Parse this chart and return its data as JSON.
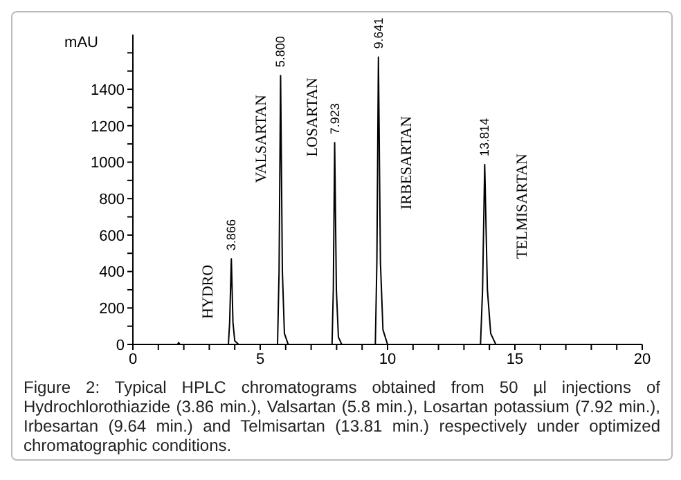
{
  "chart_data": {
    "type": "line",
    "ylabel": "mAU",
    "series": [
      {
        "color": "#000000",
        "x": [
          0,
          1.75,
          1.8,
          1.85,
          3.75,
          3.8,
          3.866,
          3.93,
          4.0,
          4.15,
          5.68,
          5.74,
          5.8,
          5.87,
          5.95,
          6.1,
          7.82,
          7.87,
          7.923,
          7.99,
          8.07,
          8.2,
          9.52,
          9.58,
          9.641,
          9.72,
          9.82,
          10.0,
          13.65,
          13.73,
          13.814,
          13.92,
          14.05,
          14.25,
          17.1
        ],
        "values": [
          0,
          0,
          10,
          0,
          0,
          120,
          470,
          120,
          20,
          0,
          0,
          400,
          1475,
          400,
          60,
          0,
          0,
          300,
          1107,
          300,
          40,
          0,
          0,
          450,
          1577,
          450,
          80,
          0,
          0,
          300,
          987,
          300,
          60,
          0,
          0
        ]
      }
    ],
    "xlim": [
      0,
      20
    ],
    "xticks": [
      0,
      {
        "value": 1,
        "label": null
      },
      {
        "value": 2,
        "label": null
      },
      {
        "value": 3,
        "label": null
      },
      {
        "value": 4,
        "label": null
      },
      5,
      {
        "value": 6,
        "label": null
      },
      {
        "value": 7,
        "label": null
      },
      {
        "value": 8,
        "label": null
      },
      {
        "value": 9,
        "label": null
      },
      10,
      {
        "value": 11,
        "label": null
      },
      {
        "value": 12,
        "label": null
      },
      {
        "value": 13,
        "label": null
      },
      {
        "value": 14,
        "label": null
      },
      15,
      {
        "value": 16,
        "label": null
      },
      {
        "value": 17,
        "label": null
      },
      {
        "value": 18,
        "label": null
      },
      {
        "value": 19,
        "label": null
      },
      20
    ],
    "ylim": [
      0,
      1700
    ],
    "yticks": [
      0,
      {
        "value": 100,
        "label": null
      },
      200,
      {
        "value": 300,
        "label": null
      },
      400,
      {
        "value": 500,
        "label": null
      },
      600,
      {
        "value": 700,
        "label": null
      },
      800,
      {
        "value": 900,
        "label": null
      },
      1000,
      {
        "value": 1100,
        "label": null
      },
      1200,
      {
        "value": 1300,
        "label": null
      },
      1400,
      {
        "value": 1500,
        "label": null
      },
      {
        "value": 1600,
        "label": null
      }
    ],
    "grid": false,
    "marker": "none",
    "line_style": "solid",
    "annotations": [
      {
        "text": "3.866",
        "x": 3.866,
        "y": 470
      },
      {
        "text": "5.800",
        "x": 5.8,
        "y": 1475
      },
      {
        "text": "7.923",
        "x": 7.923,
        "y": 1107
      },
      {
        "text": "9.641",
        "x": 9.641,
        "y": 1577
      },
      {
        "text": "13.814",
        "x": 13.814,
        "y": 987
      },
      "HYDRO",
      "VALSARTAN",
      "LOSARTAN",
      "IRBESARTAN",
      "TELMISARTAN",
      "Figure 2: Typical HPLC chromatograms obtained from 50 µl injections of Hydrochlorothiazide (3.86 min.), Valsartan (5.8 min.), Losartan potassium (7.92 min.), Irbesartan (9.64 min.) and Telmisartan (13.81 min.) respectively under optimized chromatographic conditions."
    ]
  }
}
